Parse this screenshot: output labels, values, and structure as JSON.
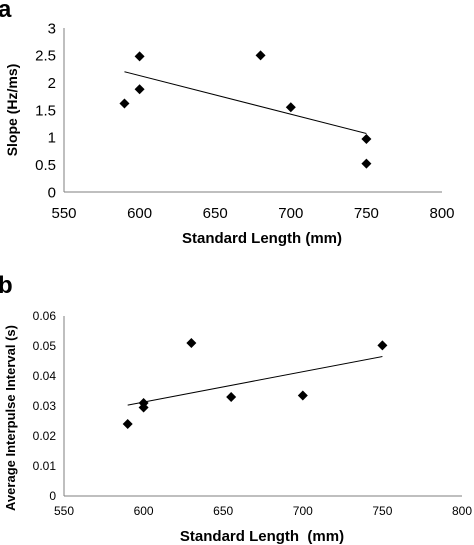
{
  "chart_data": [
    {
      "panel": "a",
      "type": "scatter",
      "xlabel": "Standard Length (mm)",
      "ylabel": "Slope (Hz/ms)",
      "xlim": [
        550,
        800
      ],
      "ylim": [
        0,
        3
      ],
      "x_ticks": [
        550,
        600,
        650,
        700,
        750,
        800
      ],
      "y_ticks": [
        0,
        0.5,
        1,
        1.5,
        2,
        2.5,
        3
      ],
      "x_tick_labels": [
        "550",
        "600",
        "650",
        "700",
        "750",
        "800"
      ],
      "y_tick_labels": [
        "0",
        "0.5",
        "1",
        "1.5",
        "2",
        "2.5",
        "3"
      ],
      "grid": false,
      "marker": "diamond",
      "points": [
        {
          "x": 590,
          "y": 1.62
        },
        {
          "x": 600,
          "y": 1.88
        },
        {
          "x": 600,
          "y": 2.48
        },
        {
          "x": 680,
          "y": 2.5
        },
        {
          "x": 700,
          "y": 1.55
        },
        {
          "x": 750,
          "y": 0.97
        },
        {
          "x": 750,
          "y": 0.52
        }
      ],
      "trendline": {
        "x": [
          590,
          750
        ],
        "y": [
          2.2,
          1.07
        ]
      }
    },
    {
      "panel": "b",
      "type": "scatter",
      "xlabel": "Standard Length  (mm)",
      "ylabel": "Average Interpulse Interval (s)",
      "xlim": [
        550,
        800
      ],
      "ylim": [
        0,
        0.06
      ],
      "x_ticks": [
        550,
        600,
        650,
        700,
        750,
        800
      ],
      "y_ticks": [
        0,
        0.01,
        0.02,
        0.03,
        0.04,
        0.05,
        0.06
      ],
      "x_tick_labels": [
        "550",
        "600",
        "650",
        "700",
        "750",
        "800"
      ],
      "y_tick_labels": [
        "0",
        "0.01",
        "0.02",
        "0.03",
        "0.04",
        "0.05",
        "0.06"
      ],
      "grid": false,
      "marker": "diamond",
      "points": [
        {
          "x": 590,
          "y": 0.024
        },
        {
          "x": 600,
          "y": 0.0295
        },
        {
          "x": 600,
          "y": 0.031
        },
        {
          "x": 630,
          "y": 0.051
        },
        {
          "x": 655,
          "y": 0.033
        },
        {
          "x": 700,
          "y": 0.0335
        },
        {
          "x": 750,
          "y": 0.0502
        }
      ],
      "trendline": {
        "x": [
          590,
          750
        ],
        "y": [
          0.0303,
          0.0465
        ]
      }
    }
  ]
}
